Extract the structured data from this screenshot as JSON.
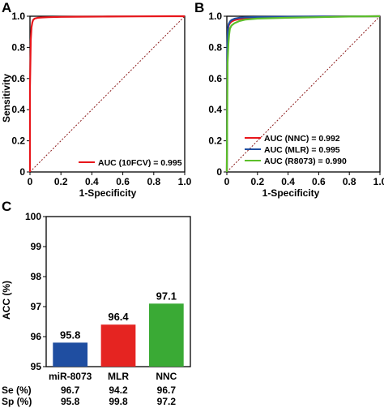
{
  "colors": {
    "red": "#e8161b",
    "blue": "#1f4ea1",
    "green": "#5cbf2a",
    "bar_blue": "#1f4ea1",
    "bar_red": "#e52421",
    "bar_green": "#3aaa35",
    "diagonal": "#8b1a1a"
  },
  "chart_data": [
    {
      "panel": "A",
      "type": "line",
      "xlabel": "1-Specificity",
      "ylabel": "Sensitivity",
      "xlim": [
        0,
        1
      ],
      "ylim": [
        0,
        1
      ],
      "xticks": [
        "0",
        "0.2",
        "0.4",
        "0.6",
        "0.8",
        "1.0"
      ],
      "yticks": [
        "0",
        "0.2",
        "0.4",
        "0.6",
        "0.8",
        "1.0"
      ],
      "grid": false,
      "legend_position": "bottom-right",
      "reference_line": "diagonal",
      "series": [
        {
          "name": "AUC (10FCV) = 0.995",
          "color": "#e8161b",
          "x": [
            0,
            0,
            0.005,
            0.01,
            0.015,
            0.02,
            0.03,
            0.05,
            0.08,
            0.12,
            0.2,
            0.3,
            0.5,
            0.7,
            0.9,
            1.0
          ],
          "y": [
            0,
            0.55,
            0.85,
            0.93,
            0.96,
            0.975,
            0.985,
            0.99,
            0.992,
            0.994,
            0.996,
            0.997,
            0.998,
            0.999,
            1.0,
            1.0
          ]
        }
      ]
    },
    {
      "panel": "B",
      "type": "line",
      "xlabel": "1-Specificity",
      "ylabel": "",
      "xlim": [
        0,
        1
      ],
      "ylim": [
        0,
        1
      ],
      "xticks": [
        "0",
        "0.2",
        "0.4",
        "0.6",
        "0.8",
        "1.0"
      ],
      "yticks": [
        "0",
        "0.2",
        "0.4",
        "0.6",
        "0.8",
        "1.0"
      ],
      "grid": false,
      "legend_position": "bottom-right",
      "reference_line": "diagonal",
      "series": [
        {
          "name": "AUC (NNC) = 0.992",
          "color": "#e8161b",
          "x": [
            0,
            0.003,
            0.008,
            0.012,
            0.02,
            0.03,
            0.05,
            0.08,
            0.12,
            0.2,
            0.4,
            0.6,
            0.8,
            1.0
          ],
          "y": [
            0,
            0.8,
            0.9,
            0.94,
            0.955,
            0.965,
            0.975,
            0.982,
            0.987,
            0.99,
            0.994,
            0.997,
            0.999,
            1.0
          ]
        },
        {
          "name": "AUC (MLR) = 0.995",
          "color": "#1f4ea1",
          "x": [
            0,
            0.003,
            0.007,
            0.012,
            0.02,
            0.03,
            0.05,
            0.08,
            0.12,
            0.2,
            0.4,
            0.6,
            0.8,
            1.0
          ],
          "y": [
            0,
            0.82,
            0.92,
            0.95,
            0.965,
            0.975,
            0.984,
            0.99,
            0.993,
            0.995,
            0.997,
            0.998,
            0.999,
            1.0
          ]
        },
        {
          "name": "AUC (R8073) = 0.990",
          "color": "#5cbf2a",
          "x": [
            0,
            0.005,
            0.01,
            0.015,
            0.02,
            0.03,
            0.05,
            0.08,
            0.12,
            0.2,
            0.4,
            0.6,
            0.8,
            1.0
          ],
          "y": [
            0,
            0.7,
            0.82,
            0.88,
            0.92,
            0.94,
            0.955,
            0.968,
            0.978,
            0.985,
            0.99,
            0.994,
            0.998,
            1.0
          ]
        }
      ]
    },
    {
      "panel": "C",
      "type": "bar",
      "ylabel": "ACC (%)",
      "ylim": [
        95,
        100
      ],
      "yticks": [
        "95",
        "96",
        "97",
        "98",
        "99",
        "100"
      ],
      "grid": false,
      "categories": [
        "miR-8073",
        "MLR",
        "NNC"
      ],
      "values": [
        95.8,
        96.4,
        97.1
      ],
      "value_labels": [
        "95.8",
        "96.4",
        "97.1"
      ],
      "bar_colors": [
        "#1f4ea1",
        "#e52421",
        "#3aaa35"
      ],
      "table": [
        {
          "label": "Se (%)",
          "values": [
            "96.7",
            "94.2",
            "96.7"
          ]
        },
        {
          "label": "Sp (%)",
          "values": [
            "95.8",
            "99.8",
            "97.2"
          ]
        }
      ]
    }
  ],
  "panel_letters": [
    "A",
    "B",
    "C"
  ]
}
